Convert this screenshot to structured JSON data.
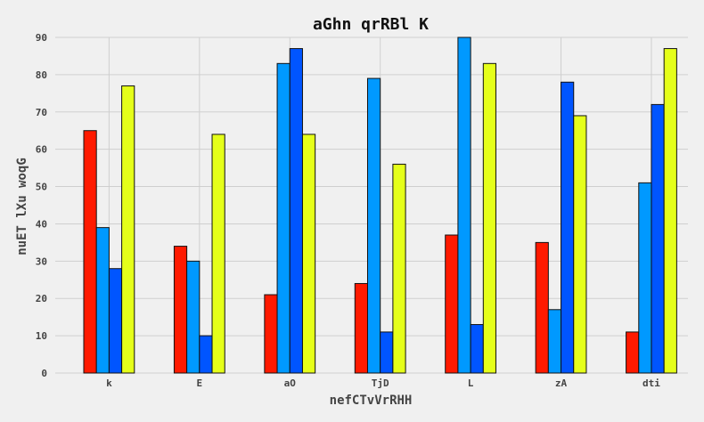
{
  "chart_data": {
    "type": "bar",
    "title": "aGhn qrRBl K",
    "xlabel": "nefCTvVrRHH",
    "ylabel": "nuET lXu woqG",
    "categories": [
      "k",
      "E",
      "aO",
      "TjD",
      "L",
      "zA",
      "dti"
    ],
    "series": [
      {
        "color": "#ff1a00",
        "values": [
          65,
          34,
          21,
          24,
          37,
          35,
          11
        ]
      },
      {
        "color": "#0099ff",
        "values": [
          39,
          30,
          83,
          79,
          90,
          17,
          51
        ]
      },
      {
        "color": "#0055ff",
        "values": [
          28,
          10,
          87,
          11,
          13,
          78,
          72
        ]
      },
      {
        "color": "#e5ff1a",
        "values": [
          77,
          64,
          64,
          56,
          83,
          69,
          87
        ]
      }
    ],
    "ylim": [
      0,
      90
    ],
    "yticks": [
      0,
      10,
      20,
      30,
      40,
      50,
      60,
      70,
      80,
      90
    ],
    "grid": true,
    "background": "#f0f0f0"
  }
}
